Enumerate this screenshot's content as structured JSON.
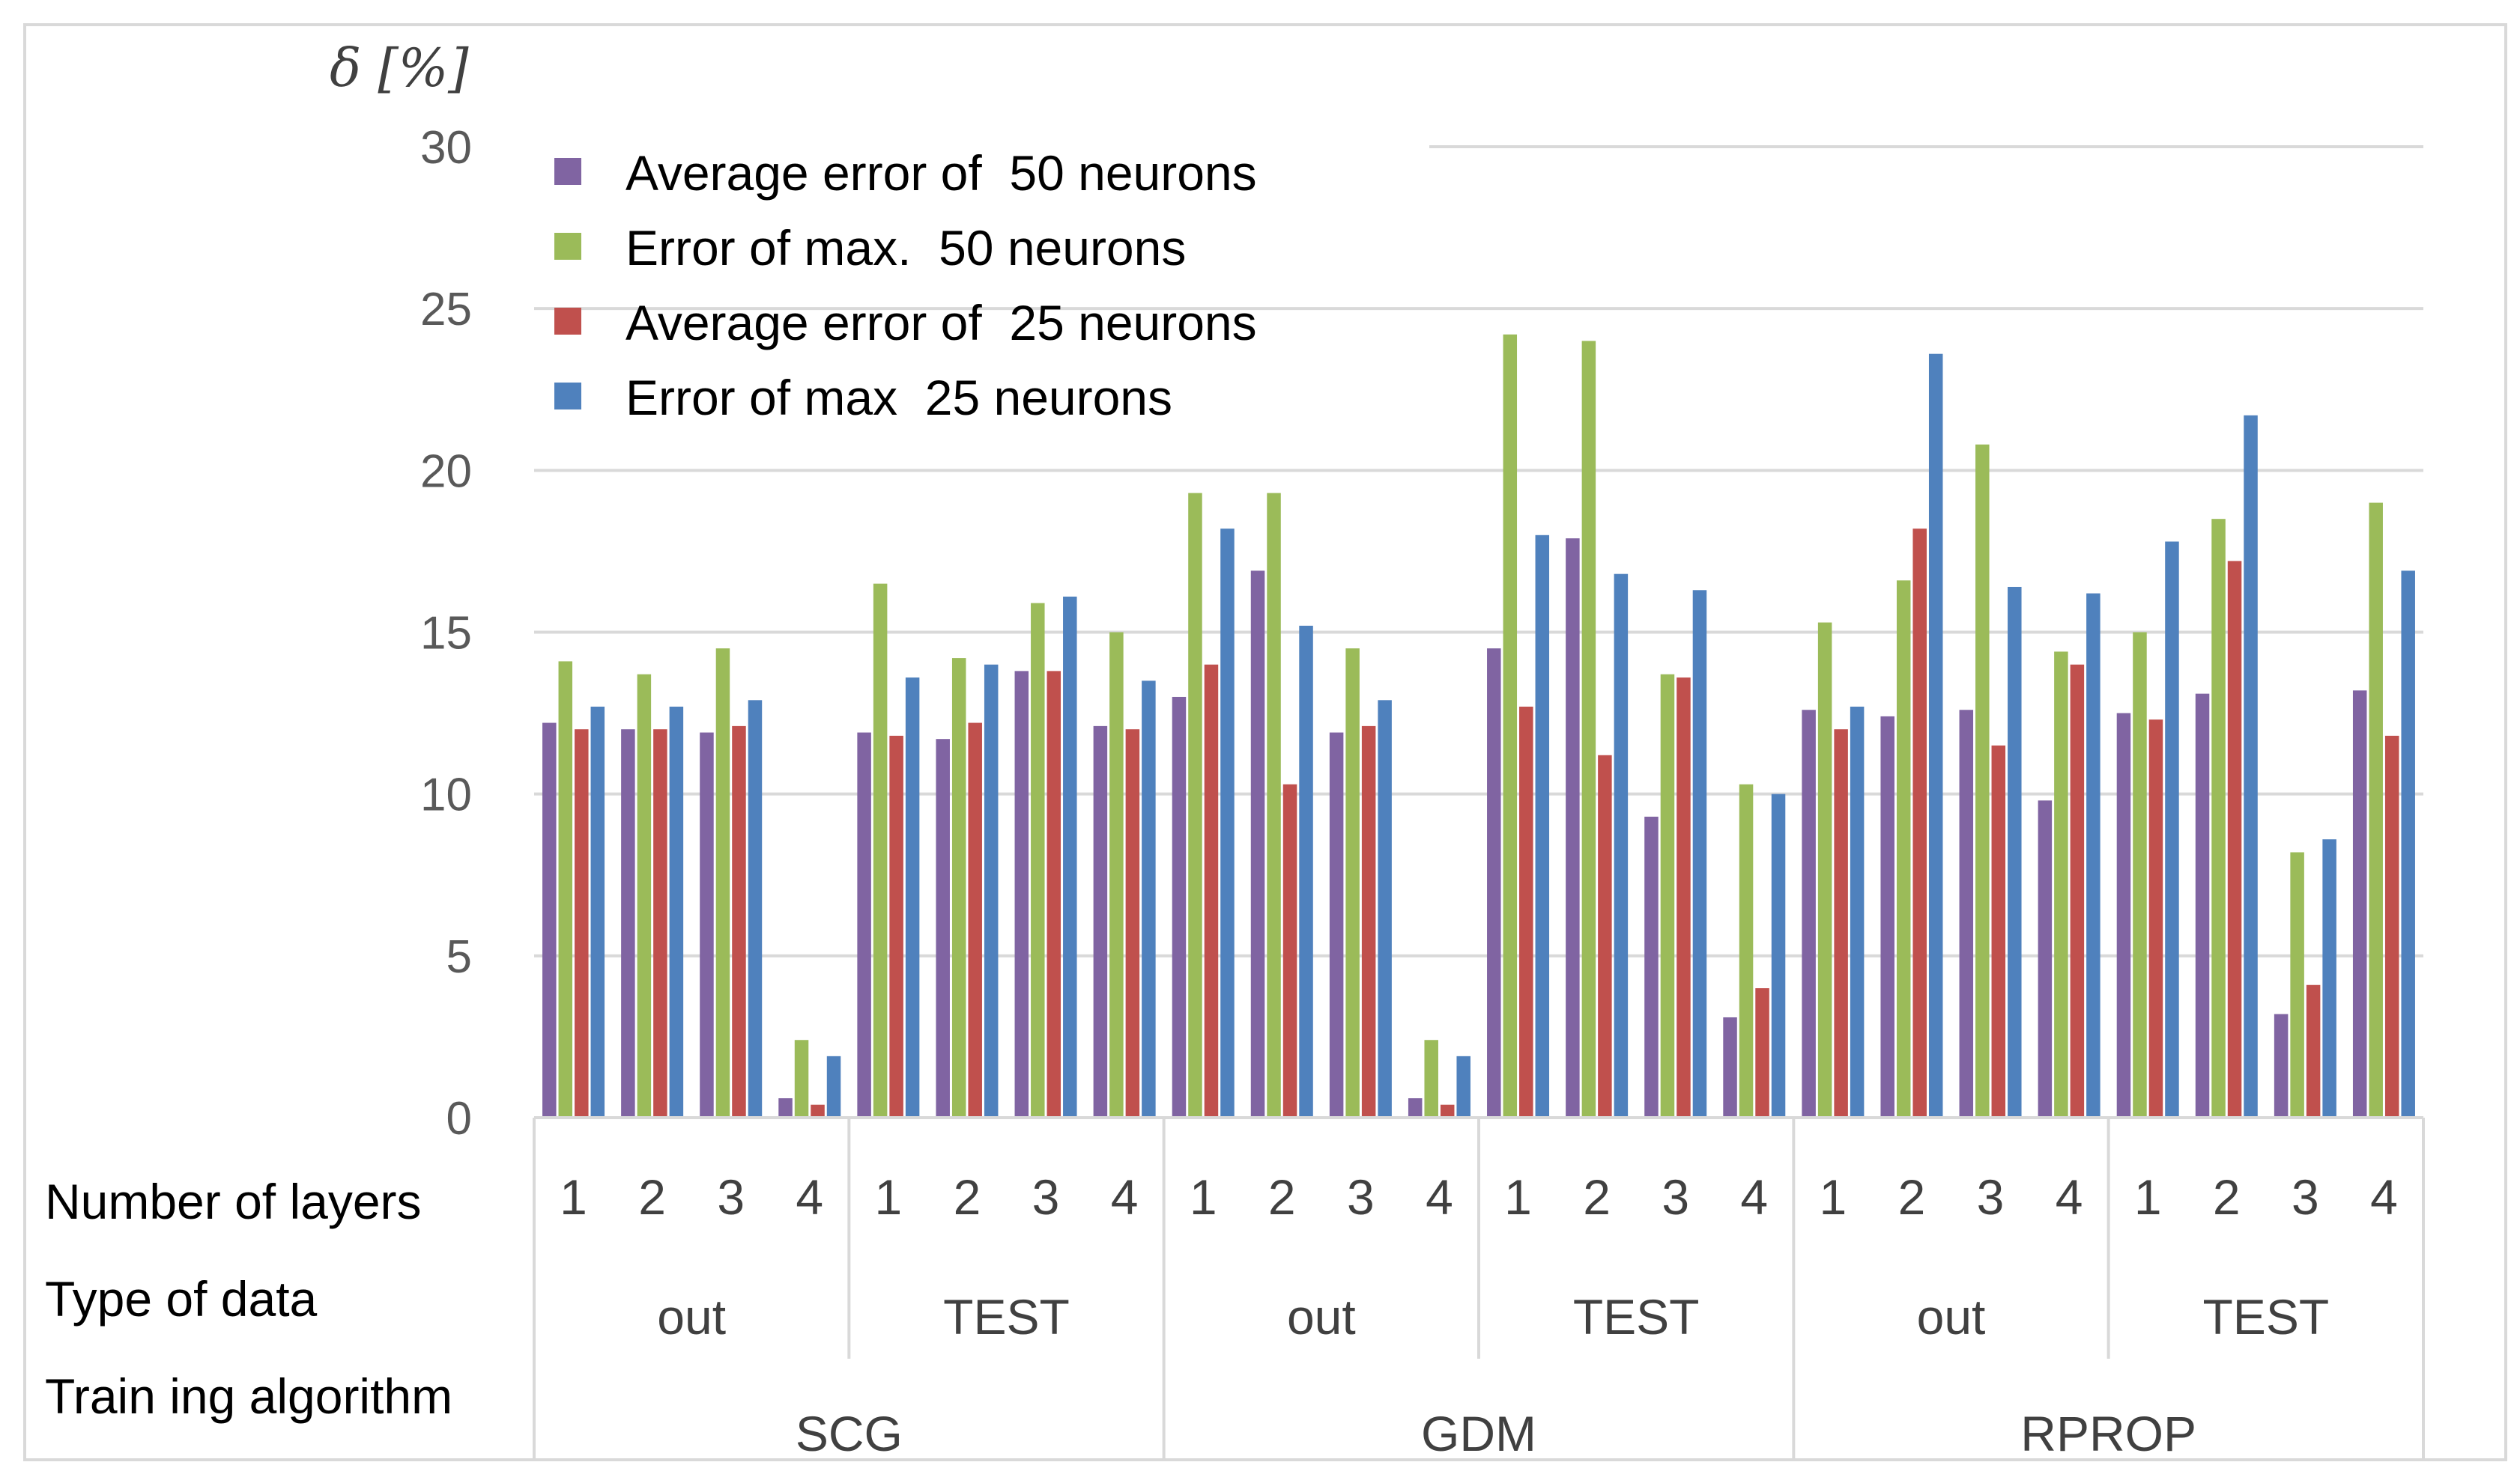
{
  "chart_data": {
    "type": "bar",
    "title": "",
    "ylabel": "δ [%]",
    "xlabel": "",
    "ylim": [
      0,
      30
    ],
    "yticks": [
      0,
      5,
      10,
      15,
      20,
      25,
      30
    ],
    "grid": true,
    "legend_position": "top-left",
    "row_labels": {
      "layers": "Number of layers",
      "data_type": "Type of data",
      "algorithm": "Train ing algorithm"
    },
    "algorithms": [
      {
        "name": "SCG",
        "data_types": [
          {
            "name": "out",
            "layers": [
              "1",
              "2",
              "3",
              "4"
            ]
          },
          {
            "name": "TEST",
            "layers": [
              "1",
              "2",
              "3",
              "4"
            ]
          }
        ]
      },
      {
        "name": "GDM",
        "data_types": [
          {
            "name": "out",
            "layers": [
              "1",
              "2",
              "3",
              "4"
            ]
          },
          {
            "name": "TEST",
            "layers": [
              "1",
              "2",
              "3",
              "4"
            ]
          }
        ]
      },
      {
        "name": "RPROP",
        "data_types": [
          {
            "name": "out",
            "layers": [
              "1",
              "2",
              "3",
              "4"
            ]
          },
          {
            "name": "TEST",
            "layers": [
              "1",
              "2",
              "3",
              "4"
            ]
          }
        ]
      }
    ],
    "series": [
      {
        "name": "Average error of  50 neurons",
        "color": "#8064a2",
        "values": [
          12.2,
          12.0,
          11.9,
          0.6,
          11.9,
          11.7,
          13.8,
          12.1,
          13.0,
          16.9,
          11.9,
          0.6,
          14.5,
          17.9,
          9.3,
          3.1,
          12.6,
          12.4,
          12.6,
          9.8,
          12.5,
          13.1,
          3.2,
          13.2
        ]
      },
      {
        "name": "Error of max.  50 neurons",
        "color": "#9bbb59",
        "values": [
          14.1,
          13.7,
          14.5,
          2.4,
          16.5,
          14.2,
          15.9,
          15.0,
          19.3,
          19.3,
          14.5,
          2.4,
          24.2,
          24.0,
          13.7,
          10.3,
          15.3,
          16.6,
          20.8,
          14.4,
          15.0,
          18.5,
          8.2,
          19.0
        ]
      },
      {
        "name": "Average error of  25 neurons",
        "color": "#c0504d",
        "values": [
          12.0,
          12.0,
          12.1,
          0.4,
          11.8,
          12.2,
          13.8,
          12.0,
          14.0,
          10.3,
          12.1,
          0.4,
          12.7,
          11.2,
          13.6,
          4.0,
          12.0,
          18.2,
          11.5,
          14.0,
          12.3,
          17.2,
          4.1,
          11.8
        ]
      },
      {
        "name": "Error of max  25 neurons",
        "color": "#4f81bd",
        "values": [
          12.7,
          12.7,
          12.9,
          1.9,
          13.6,
          14.0,
          16.1,
          13.5,
          18.2,
          15.2,
          12.9,
          1.9,
          18.0,
          16.8,
          16.3,
          10.0,
          12.7,
          23.6,
          16.4,
          16.2,
          17.8,
          21.7,
          8.6,
          16.9
        ]
      }
    ]
  }
}
